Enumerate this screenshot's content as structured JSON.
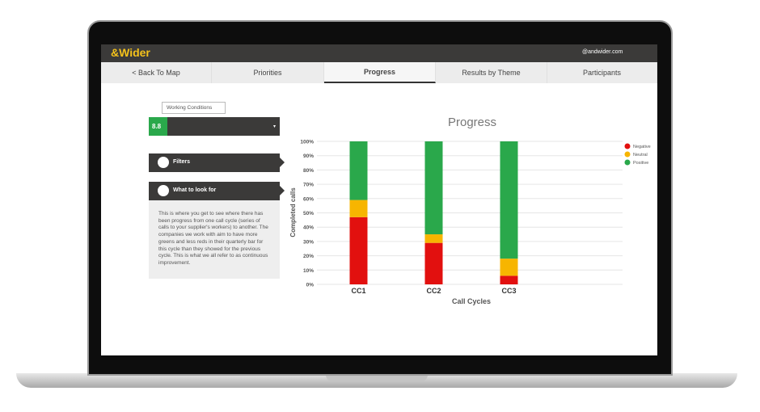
{
  "header": {
    "logo": "&Wider",
    "user": "@andwider.com"
  },
  "nav": [
    "< Back To Map",
    "Priorities",
    "Progress",
    "Results by Theme",
    "Participants"
  ],
  "sidebar": {
    "dropdown": "Working Conditions",
    "score": "8.8",
    "filters": "Filters",
    "what_to_look_for": "What to look for",
    "description": "This is where you get to see where there has been progress from one call cycle (series of calls to your supplier's workers) to another. The companies we work with aim to have more greens and less reds in their quarterly bar for this cycle than they showed for the previous cycle. This is what we all refer to as continuous improvement."
  },
  "chart_data": {
    "type": "stacked_bar",
    "title": "Progress",
    "x_label": "Call Cycles",
    "y_label": "Completed calls",
    "categories": [
      "CC1",
      "CC2",
      "CC3"
    ],
    "series": [
      {
        "name": "Negative",
        "color": "#e2100f",
        "values": [
          47,
          29,
          6
        ]
      },
      {
        "name": "Neutral",
        "color": "#f7b500",
        "values": [
          12,
          6,
          12
        ]
      },
      {
        "name": "Positive",
        "color": "#2aa84b",
        "values": [
          41,
          65,
          82
        ]
      }
    ],
    "ylim": [
      0,
      100
    ],
    "yticks": [
      {
        "value": 0,
        "label": "0%"
      },
      {
        "value": 10,
        "label": "10%"
      },
      {
        "value": 20,
        "label": "20%"
      },
      {
        "value": 30,
        "label": "30%"
      },
      {
        "value": 40,
        "label": "40%"
      },
      {
        "value": 50,
        "label": "50%"
      },
      {
        "value": 60,
        "label": "60%"
      },
      {
        "value": 70,
        "label": "70%"
      },
      {
        "value": 80,
        "label": "80%"
      },
      {
        "value": 90,
        "label": "90%"
      },
      {
        "value": 100,
        "label": "100%"
      }
    ],
    "grid": true,
    "legend": "top-right"
  }
}
